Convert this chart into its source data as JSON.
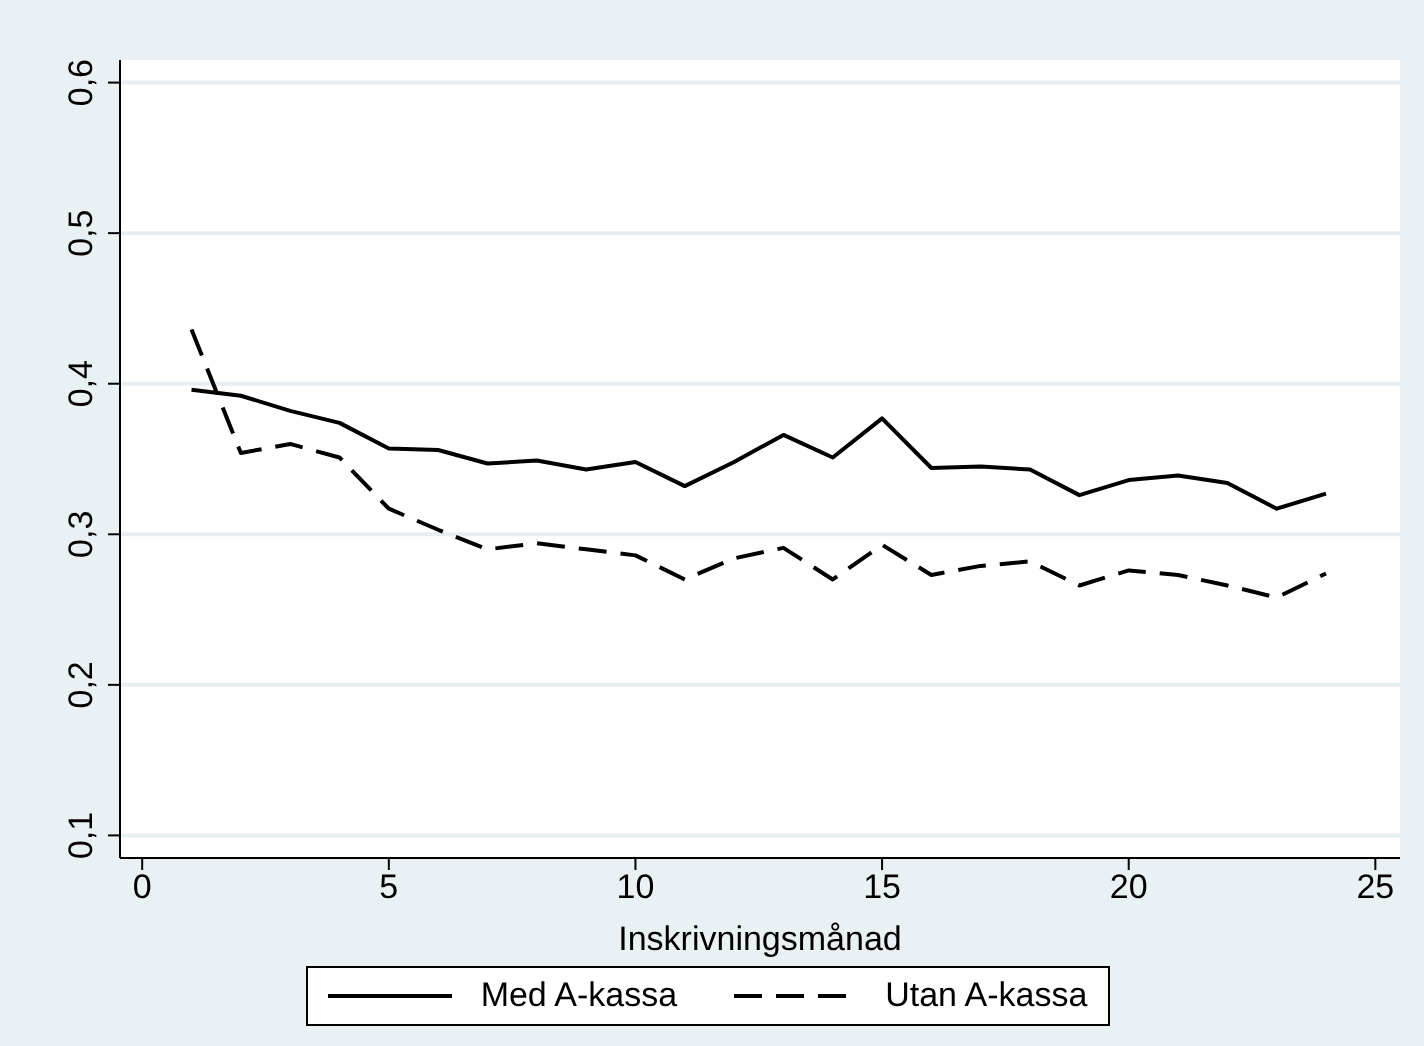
{
  "chart_data": {
    "type": "line",
    "xlabel": "Inskrivningsmånad",
    "x": [
      1,
      2,
      3,
      4,
      5,
      6,
      7,
      8,
      9,
      10,
      11,
      12,
      13,
      14,
      15,
      16,
      17,
      18,
      19,
      20,
      21,
      22,
      23,
      24
    ],
    "series": [
      {
        "name": "Med A-kassa",
        "color": "#000000",
        "line_style": "solid",
        "values": [
          0.396,
          0.392,
          0.382,
          0.374,
          0.357,
          0.356,
          0.347,
          0.349,
          0.343,
          0.348,
          0.332,
          0.348,
          0.366,
          0.351,
          0.377,
          0.344,
          0.345,
          0.343,
          0.326,
          0.336,
          0.339,
          0.334,
          0.317,
          0.327
        ]
      },
      {
        "name": "Utan A-kassa",
        "color": "#000000",
        "line_style": "dashed",
        "values": [
          0.436,
          0.354,
          0.36,
          0.351,
          0.317,
          0.303,
          0.29,
          0.294,
          0.29,
          0.286,
          0.27,
          0.284,
          0.291,
          0.27,
          0.293,
          0.273,
          0.279,
          0.282,
          0.266,
          0.276,
          0.273,
          0.266,
          0.258,
          0.274
        ]
      }
    ],
    "xlim": [
      -0.45,
      25.5
    ],
    "xticks": [
      0,
      5,
      10,
      15,
      20,
      25
    ],
    "ylim": [
      0.085,
      0.615
    ],
    "yticks": [
      {
        "value": 0.1,
        "label": "0,1"
      },
      {
        "value": 0.2,
        "label": "0,2"
      },
      {
        "value": 0.3,
        "label": "0,3"
      },
      {
        "value": 0.4,
        "label": "0,4"
      },
      {
        "value": 0.5,
        "label": "0,5"
      },
      {
        "value": 0.6,
        "label": "0,6"
      }
    ],
    "grid": "y",
    "legend": "bottom",
    "marker": "none"
  }
}
